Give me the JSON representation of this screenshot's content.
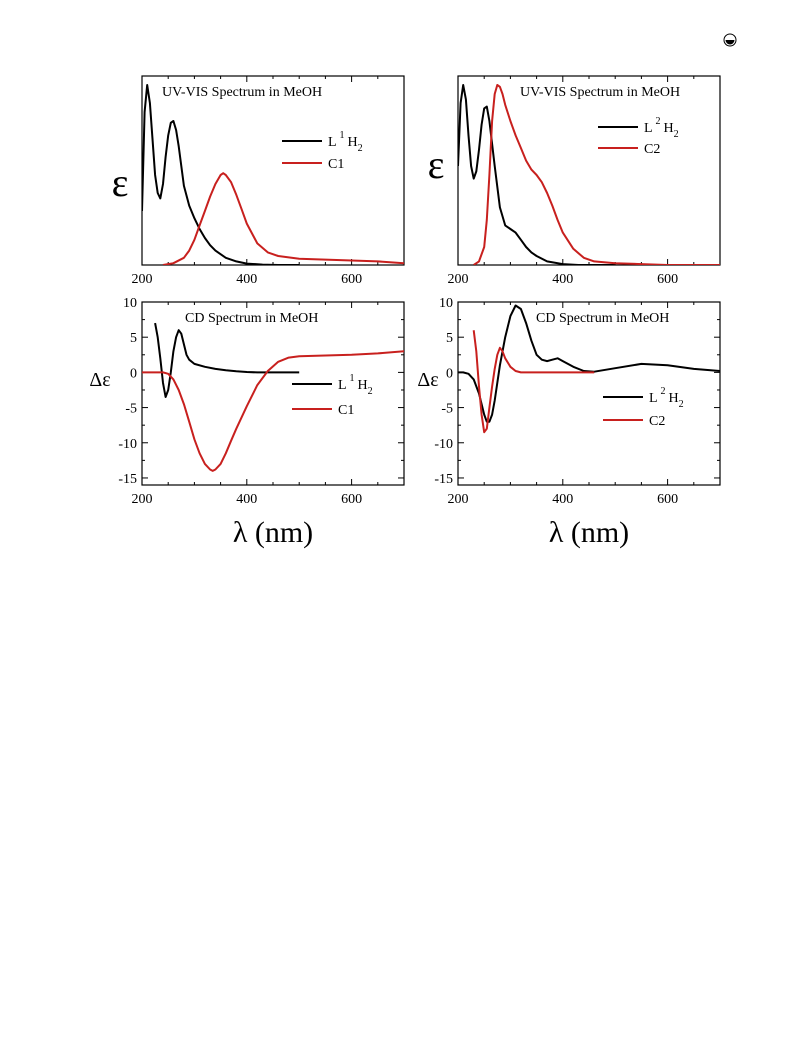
{
  "page": {
    "corner_icon": "circle-dot-icon"
  },
  "figure": {
    "x_axis_title": "λ (nm)"
  },
  "chart_data": [
    {
      "id": "uv1",
      "type": "line",
      "title": "UV-VIS Spectrum in MeOH",
      "ylabel": "ε",
      "y_ticks_shown": false,
      "xlim": [
        200,
        700
      ],
      "ylim": [
        0,
        1.05
      ],
      "x_ticks": [
        200,
        400,
        600
      ],
      "y_ticks": [],
      "legend": {
        "placement": "top-right",
        "sup": "1"
      },
      "series": [
        {
          "name": "L1H2",
          "legend_label": "L",
          "legend_sub": "H",
          "legend_subsub": "2",
          "color": "#000000",
          "x": [
            200,
            205,
            210,
            215,
            220,
            225,
            230,
            235,
            240,
            245,
            250,
            255,
            260,
            265,
            270,
            275,
            280,
            290,
            300,
            310,
            320,
            330,
            340,
            350,
            360,
            380,
            400,
            430,
            460,
            500
          ],
          "y": [
            0.3,
            0.85,
            1.0,
            0.9,
            0.7,
            0.5,
            0.4,
            0.37,
            0.45,
            0.6,
            0.72,
            0.79,
            0.8,
            0.75,
            0.66,
            0.55,
            0.44,
            0.33,
            0.26,
            0.2,
            0.15,
            0.11,
            0.08,
            0.06,
            0.04,
            0.02,
            0.008,
            0.002,
            0.0,
            0.0
          ]
        },
        {
          "name": "C1",
          "legend_label": "C1",
          "color": "#c8201e",
          "x": [
            240,
            260,
            280,
            290,
            300,
            310,
            320,
            330,
            340,
            350,
            355,
            360,
            370,
            380,
            390,
            400,
            420,
            440,
            460,
            500,
            550,
            600,
            650,
            700
          ],
          "y": [
            0.0,
            0.01,
            0.04,
            0.08,
            0.14,
            0.22,
            0.3,
            0.38,
            0.45,
            0.5,
            0.51,
            0.5,
            0.46,
            0.39,
            0.31,
            0.23,
            0.12,
            0.07,
            0.05,
            0.035,
            0.03,
            0.025,
            0.02,
            0.01
          ]
        }
      ]
    },
    {
      "id": "uv2",
      "type": "line",
      "title": "UV-VIS Spectrum in MeOH",
      "ylabel": "ε",
      "y_ticks_shown": false,
      "xlim": [
        200,
        700
      ],
      "ylim": [
        0,
        1.05
      ],
      "x_ticks": [
        200,
        400,
        600
      ],
      "y_ticks": [],
      "legend": {
        "placement": "top-right",
        "sup": "2"
      },
      "series": [
        {
          "name": "L2H2",
          "legend_label": "L",
          "legend_sub": "H",
          "legend_subsub": "2",
          "color": "#000000",
          "x": [
            200,
            205,
            210,
            215,
            220,
            225,
            230,
            235,
            240,
            245,
            250,
            255,
            260,
            270,
            280,
            290,
            300,
            310,
            320,
            330,
            340,
            350,
            370,
            400,
            430,
            460,
            500
          ],
          "y": [
            0.55,
            0.9,
            1.0,
            0.92,
            0.72,
            0.55,
            0.48,
            0.52,
            0.64,
            0.78,
            0.87,
            0.88,
            0.8,
            0.55,
            0.32,
            0.22,
            0.2,
            0.18,
            0.14,
            0.1,
            0.07,
            0.05,
            0.02,
            0.005,
            0.0,
            0.0,
            0.0
          ]
        },
        {
          "name": "C2",
          "legend_label": "C2",
          "color": "#c8201e",
          "x": [
            230,
            240,
            250,
            255,
            260,
            265,
            270,
            275,
            280,
            285,
            290,
            300,
            310,
            320,
            330,
            340,
            350,
            360,
            370,
            380,
            390,
            400,
            420,
            440,
            460,
            500,
            550,
            600,
            650,
            700
          ],
          "y": [
            0.0,
            0.02,
            0.1,
            0.25,
            0.5,
            0.8,
            0.95,
            1.0,
            0.99,
            0.95,
            0.89,
            0.8,
            0.72,
            0.65,
            0.58,
            0.53,
            0.5,
            0.46,
            0.4,
            0.33,
            0.25,
            0.18,
            0.09,
            0.04,
            0.02,
            0.01,
            0.005,
            0.0,
            0.0,
            0.0
          ]
        }
      ]
    },
    {
      "id": "cd1",
      "type": "line",
      "title": "CD Spectrum in MeOH",
      "ylabel": "Δε",
      "y_ticks_shown": true,
      "xlim": [
        200,
        700
      ],
      "ylim": [
        -16,
        10
      ],
      "x_ticks": [
        200,
        400,
        600
      ],
      "y_ticks": [
        10,
        5,
        0,
        -5,
        -10,
        -15
      ],
      "legend": {
        "placement": "right",
        "sup": "1"
      },
      "series": [
        {
          "name": "L1H2",
          "legend_label": "L",
          "legend_sub": "H",
          "legend_subsub": "2",
          "color": "#000000",
          "x": [
            225,
            230,
            235,
            240,
            245,
            250,
            255,
            260,
            265,
            270,
            275,
            280,
            285,
            290,
            300,
            320,
            340,
            360,
            380,
            400,
            420,
            440,
            460,
            480,
            500
          ],
          "y": [
            7,
            5,
            2,
            -1.5,
            -3.5,
            -2.5,
            0,
            3,
            5,
            6,
            5.5,
            4,
            2.5,
            1.8,
            1.2,
            0.8,
            0.5,
            0.3,
            0.15,
            0.05,
            0,
            0,
            0,
            0,
            0
          ]
        },
        {
          "name": "C1",
          "legend_label": "C1",
          "color": "#c8201e",
          "x": [
            200,
            220,
            240,
            250,
            260,
            270,
            280,
            290,
            300,
            310,
            320,
            330,
            335,
            340,
            350,
            360,
            370,
            380,
            400,
            420,
            440,
            460,
            480,
            500,
            550,
            600,
            650,
            700
          ],
          "y": [
            0,
            0,
            0,
            -0.2,
            -1,
            -2.5,
            -4.5,
            -7,
            -9.5,
            -11.5,
            -13,
            -13.8,
            -14,
            -13.8,
            -13,
            -11.5,
            -9.7,
            -8,
            -4.8,
            -1.8,
            0.2,
            1.5,
            2.1,
            2.3,
            2.4,
            2.5,
            2.7,
            3
          ]
        }
      ]
    },
    {
      "id": "cd2",
      "type": "line",
      "title": "CD Spectrum in MeOH",
      "ylabel": "Δε",
      "y_ticks_shown": true,
      "xlim": [
        200,
        700
      ],
      "ylim": [
        -16,
        10
      ],
      "x_ticks": [
        200,
        400,
        600
      ],
      "y_ticks": [
        10,
        5,
        0,
        -5,
        -10,
        -15
      ],
      "legend": {
        "placement": "right",
        "sup": "2"
      },
      "series": [
        {
          "name": "L2H2",
          "legend_label": "L",
          "legend_sub": "H",
          "legend_subsub": "2",
          "color": "#000000",
          "x": [
            200,
            210,
            220,
            230,
            240,
            245,
            250,
            255,
            260,
            265,
            270,
            275,
            280,
            290,
            300,
            310,
            320,
            330,
            340,
            350,
            360,
            370,
            380,
            390,
            400,
            420,
            440,
            460,
            500,
            550,
            600,
            650,
            700
          ],
          "y": [
            0,
            0,
            -0.2,
            -1,
            -3,
            -4.5,
            -6,
            -7,
            -7,
            -6,
            -4,
            -1.5,
            1,
            5,
            8,
            9.5,
            9,
            7,
            4.5,
            2.5,
            1.8,
            1.6,
            1.8,
            2,
            1.6,
            0.8,
            0.2,
            0.1,
            0.6,
            1.2,
            1,
            0.5,
            0.2
          ]
        },
        {
          "name": "C2",
          "legend_label": "C2",
          "color": "#c8201e",
          "x": [
            230,
            235,
            240,
            245,
            250,
            255,
            260,
            265,
            270,
            275,
            280,
            285,
            290,
            300,
            310,
            320,
            340,
            360,
            380,
            400,
            420,
            440,
            460
          ],
          "y": [
            6,
            3,
            -2,
            -6,
            -8.5,
            -8,
            -5,
            -2,
            0.5,
            2.5,
            3.5,
            3,
            2,
            0.8,
            0.2,
            0,
            0,
            0,
            0,
            0,
            0,
            0,
            0
          ]
        }
      ]
    }
  ]
}
